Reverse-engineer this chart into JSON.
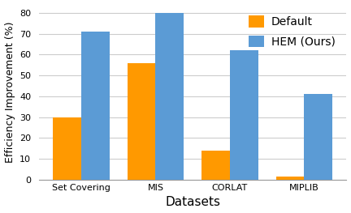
{
  "categories": [
    "Set Covering",
    "MIS",
    "CORLAT",
    "MIPLIB"
  ],
  "default_values": [
    30,
    56,
    14,
    1.5
  ],
  "hem_values": [
    71,
    80,
    62,
    41
  ],
  "default_color": "#FF9900",
  "hem_color": "#5B9BD5",
  "xlabel": "Datasets",
  "ylabel": "Efficiency Improvement (%)",
  "ylim": [
    0,
    84
  ],
  "yticks": [
    0,
    10,
    20,
    30,
    40,
    50,
    60,
    70,
    80
  ],
  "legend_labels": [
    "Default",
    "HEM (Ours)"
  ],
  "bar_width": 0.38,
  "background_color": "#FFFFFF",
  "grid_color": "#CCCCCC",
  "xlabel_fontsize": 11,
  "ylabel_fontsize": 9,
  "tick_fontsize": 8,
  "legend_fontsize": 10
}
